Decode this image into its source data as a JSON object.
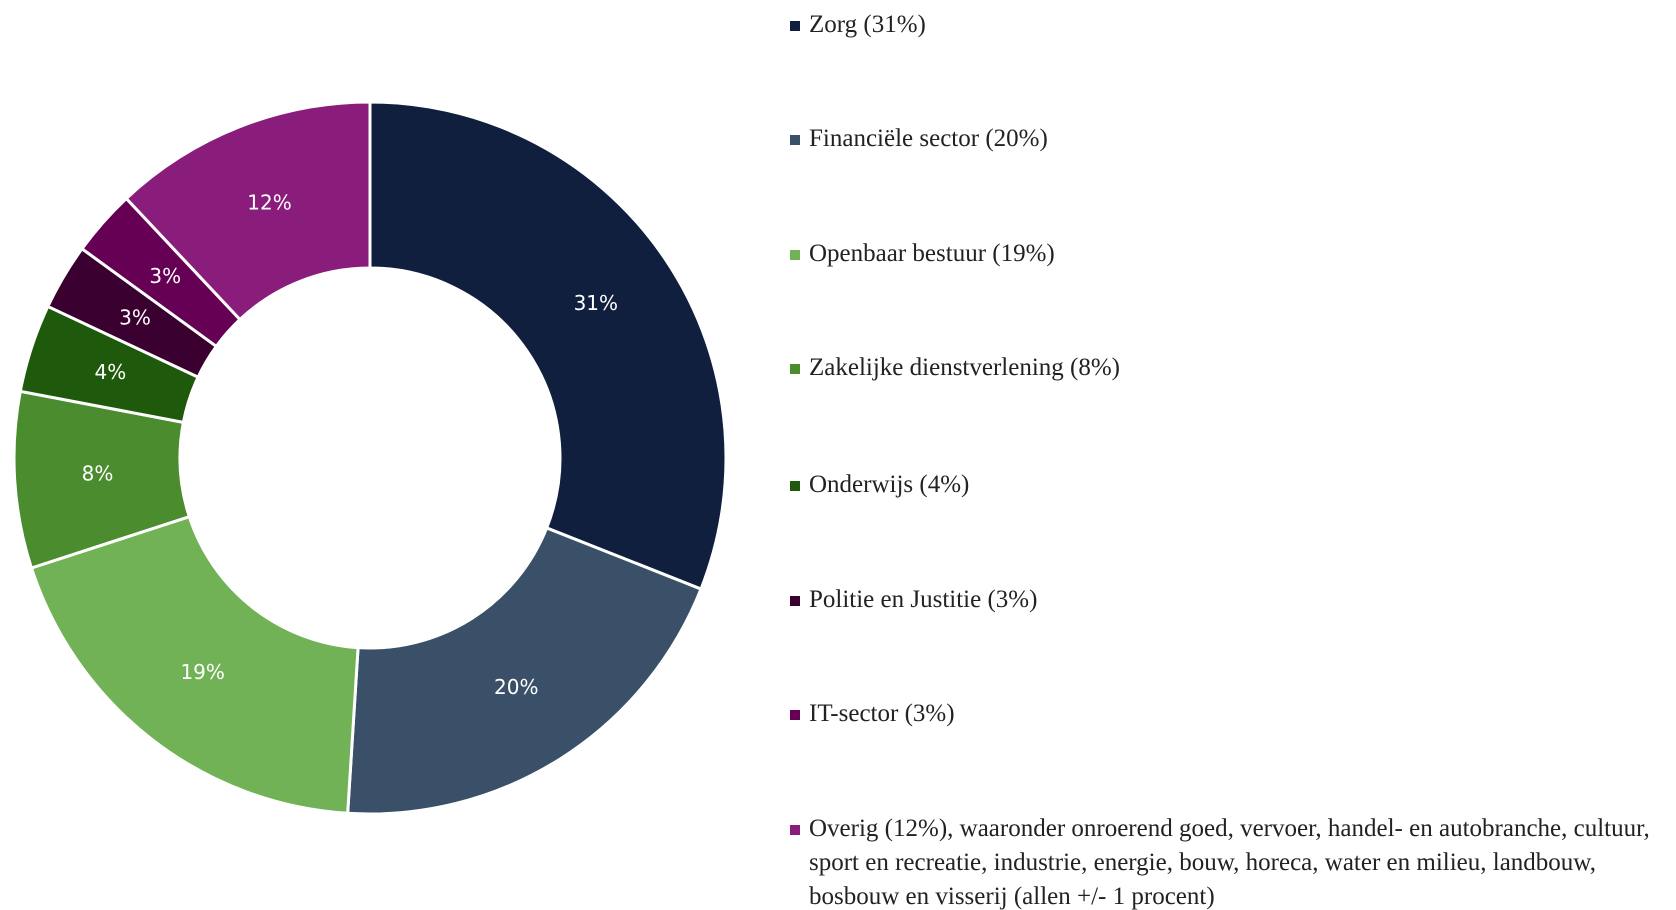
{
  "chart_data": {
    "type": "donut",
    "categories": [
      "Zorg (31%)",
      "Financiële sector (20%)",
      "Openbaar bestuur (19%)",
      "Zakelijke dienstverlening (8%)",
      "Onderwijs (4%)",
      "Politie en Justitie (3%)",
      "IT-sector (3%)",
      "Overig (12%), waaronder onroerend goed, vervoer, handel- en autobranche, cultuur, sport en recreatie, industrie, energie, bouw, horeca, water en milieu, landbouw, bosbouw en visserij (allen +/- 1 procent)"
    ],
    "values": [
      31,
      20,
      19,
      8,
      4,
      3,
      3,
      12
    ],
    "value_labels": [
      "31%",
      "20%",
      "19%",
      "8%",
      "4%",
      "3%",
      "3%",
      "12%"
    ],
    "colors": [
      "#0f1f3d",
      "#3a5068",
      "#70b255",
      "#4a8c2e",
      "#1f5a0c",
      "#3a0030",
      "#660055",
      "#8a1c7c"
    ]
  }
}
